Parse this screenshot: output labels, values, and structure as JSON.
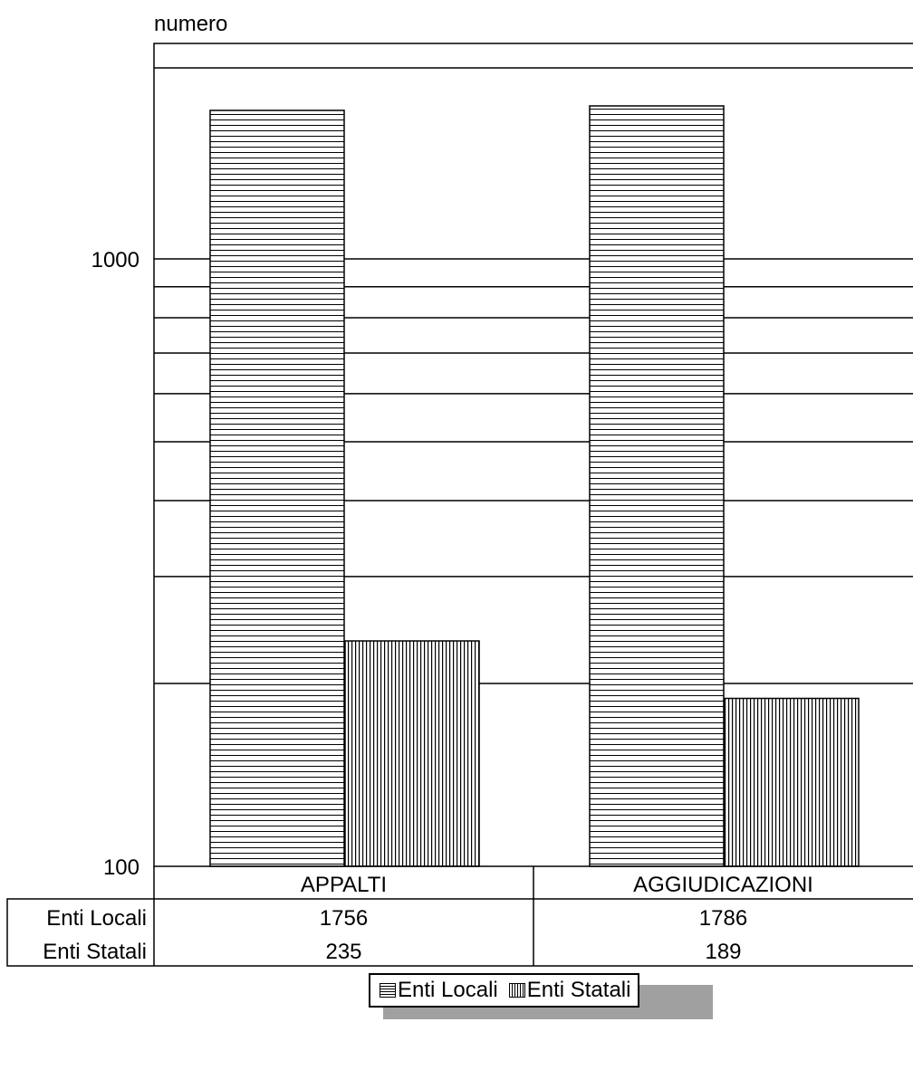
{
  "chart_data": {
    "type": "bar",
    "ylabel": "numero",
    "yscale": "log",
    "ylim": [
      100,
      2000
    ],
    "yticks": [
      {
        "value": 100,
        "label": "100"
      },
      {
        "value": 1000,
        "label": "1000"
      }
    ],
    "categories": [
      "APPALTI",
      "AGGIUDICAZIONI"
    ],
    "series": [
      {
        "name": "Enti Locali",
        "values": [
          1756,
          1786
        ],
        "pattern": "horizontal-hatch"
      },
      {
        "name": "Enti Statali",
        "values": [
          235,
          189
        ],
        "pattern": "vertical-hatch"
      }
    ],
    "table": {
      "rows": [
        {
          "label": "Enti Locali",
          "cells": [
            "1756",
            "1786"
          ]
        },
        {
          "label": "Enti Statali",
          "cells": [
            "235",
            "189"
          ]
        }
      ]
    },
    "legend": {
      "position": "bottom",
      "items": [
        "Enti Locali",
        "Enti Statali"
      ]
    },
    "grid": true,
    "colors": {
      "bar_fill": "#ffffff",
      "line": "#000000",
      "legend_shadow": "#a0a0a0"
    }
  }
}
